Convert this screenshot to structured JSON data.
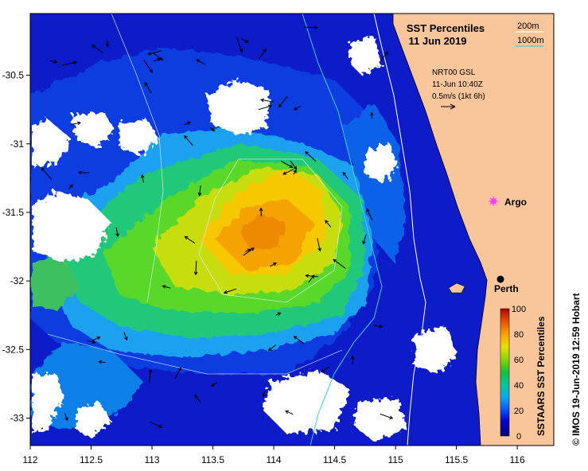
{
  "map": {
    "title": "SST Percentiles",
    "date": "11 Jun 2019",
    "x_ticks": [
      "112",
      "112.5",
      "113",
      "113.5",
      "114",
      "114.5",
      "115",
      "115.5",
      "116"
    ],
    "y_ticks": [
      "-30.5",
      "-31",
      "-31.5",
      "-32",
      "-32.5",
      "-33"
    ],
    "lon_range": [
      112,
      116.3
    ],
    "lat_range": [
      -33.2,
      -30.05
    ]
  },
  "legend": {
    "contour_200": "200m",
    "contour_1000": "1000m",
    "current_source": "NRT00 GSL",
    "current_time": "11-Jun 10:40Z",
    "current_scale": "0.5m/s (1kt 6h)"
  },
  "places": [
    {
      "name": "Argo",
      "lon": 115.8,
      "lat": -31.48,
      "marker": "argo-float"
    },
    {
      "name": "Perth",
      "lon": 115.86,
      "lat": -31.95,
      "marker": "city"
    }
  ],
  "colorbar": {
    "label": "SSTAARS SST Percentiles",
    "ticks": [
      "0",
      "20",
      "40",
      "60",
      "80",
      "100"
    ],
    "colors": [
      "#00007a",
      "#0000d8",
      "#0050ff",
      "#00aaff",
      "#00c8a0",
      "#10c040",
      "#80d800",
      "#e8e000",
      "#ffa000",
      "#e85000",
      "#b00000"
    ]
  },
  "credit": "© IMOS 19-Jun-2019 12:59 Hobart",
  "colors": {
    "land": "#f9c59a",
    "cloud": "#ffffff",
    "contour_200": "#ffffff",
    "contour_1000": "#3ecfcf"
  }
}
